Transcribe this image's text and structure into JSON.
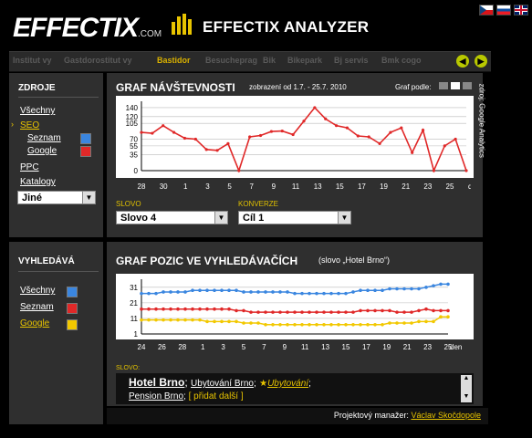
{
  "header": {
    "logo_text": "EFFECTIX",
    "logo_suffix": ".COM",
    "app_title": "EFFECTIX ANALYZER",
    "colors": {
      "accent": "#e8c400",
      "red": "#e02828",
      "blue": "#3a86e0",
      "yellow": "#f2c800"
    }
  },
  "tabs": [
    {
      "label": "Institut vy"
    },
    {
      "label": "Gastdorostitut vy"
    },
    {
      "label": "Bastidor",
      "active": true
    },
    {
      "label": "Besucheprag"
    },
    {
      "label": "Bik"
    },
    {
      "label": "Bikepark"
    },
    {
      "label": "Bj servis"
    },
    {
      "label": "Bmk cogo"
    }
  ],
  "sidebar_top": {
    "heading": "ZDROJE",
    "items": [
      "Všechny",
      "SEO",
      "Seznam",
      "Google",
      "PPC",
      "Katalogy"
    ],
    "select_value": "Jiné"
  },
  "chart1": {
    "title": "GRAF NÁVŠTEVNOSTI",
    "range": "zobrazení od 1.7. - 25.7. 2010",
    "graf_podle": "Graf podle:",
    "source": "zdroj: Google Analytics",
    "day_unit": "den"
  },
  "controls": {
    "slovo_label": "SLOVO",
    "slovo_value": "Slovo 4",
    "konverze_label": "KONVERZE",
    "konverze_value": "Cíl 1"
  },
  "sidebar_bottom": {
    "heading": "VYHLEDÁVÁ",
    "items": [
      "Všechny",
      "Seznam",
      "Google"
    ]
  },
  "chart2": {
    "title": "GRAF POZIC VE VYHLEDÁVAČÍCH",
    "subtitle": "(slovo „Hotel Brno“)",
    "day_unit": "den"
  },
  "keywords": {
    "label": "SLOVO:",
    "main": "Hotel Brno",
    "sep1": ";",
    "kw2": "Ubytování Brno",
    "sep2": ";",
    "kw3": "Ubytování",
    "sep3": ";",
    "kw4": "Pension Brno",
    "sep4": ";",
    "add": "[ přidat další ]"
  },
  "footer": {
    "label": "Projektový manažer:",
    "name": "Václav Skočdopole"
  },
  "chart_data": [
    {
      "type": "line",
      "title": "GRAF NÁVŠTEVNOSTI",
      "xlabel": "den",
      "x_ticks": [
        "28",
        "30",
        "1",
        "3",
        "5",
        "7",
        "9",
        "11",
        "13",
        "15",
        "17",
        "19",
        "21",
        "23",
        "25"
      ],
      "y_ticks": [
        0,
        35,
        55,
        70,
        105,
        120,
        140
      ],
      "ylim": [
        0,
        150
      ],
      "series": [
        {
          "color": "#e02828",
          "values": [
            85,
            83,
            100,
            85,
            72,
            70,
            47,
            45,
            60,
            0,
            75,
            78,
            87,
            88,
            80,
            110,
            140,
            115,
            100,
            95,
            77,
            75,
            60,
            85,
            95,
            40,
            90,
            0,
            55,
            70,
            0
          ]
        }
      ]
    },
    {
      "type": "line",
      "title": "GRAF POZIC VE VYHLEDÁVAČÍCH",
      "xlabel": "den",
      "x_ticks": [
        "24",
        "26",
        "28",
        "1",
        "3",
        "5",
        "7",
        "9",
        "11",
        "13",
        "15",
        "17",
        "19",
        "21",
        "23",
        "25"
      ],
      "y_ticks": [
        1,
        11,
        21,
        31
      ],
      "ylim": [
        1,
        35
      ],
      "series": [
        {
          "name": "Seznam",
          "color": "#e02828",
          "values": [
            17,
            17,
            17,
            17,
            17,
            17,
            17,
            17,
            17,
            17,
            17,
            17,
            17,
            16,
            16,
            15,
            15,
            15,
            15,
            15,
            15,
            15,
            15,
            15,
            15,
            15,
            15,
            15,
            15,
            15,
            16,
            16,
            16,
            16,
            16,
            15,
            15,
            15,
            16,
            17,
            16,
            16,
            16
          ]
        },
        {
          "name": "Google",
          "color": "#f2c800",
          "values": [
            10,
            10,
            10,
            10,
            10,
            10,
            10,
            10,
            10,
            9,
            9,
            9,
            9,
            9,
            8,
            8,
            8,
            7,
            7,
            7,
            7,
            7,
            7,
            7,
            7,
            7,
            7,
            7,
            7,
            7,
            7,
            7,
            7,
            7,
            8,
            8,
            8,
            8,
            9,
            9,
            9,
            12,
            12
          ]
        },
        {
          "name": "Všechny",
          "color": "#3a86e0",
          "values": [
            27,
            27,
            27,
            28,
            28,
            28,
            28,
            29,
            29,
            29,
            29,
            29,
            29,
            29,
            28,
            28,
            28,
            28,
            28,
            28,
            28,
            27,
            27,
            27,
            27,
            27,
            27,
            27,
            27,
            28,
            29,
            29,
            29,
            29,
            30,
            30,
            30,
            30,
            30,
            31,
            32,
            33,
            33
          ]
        }
      ]
    }
  ]
}
